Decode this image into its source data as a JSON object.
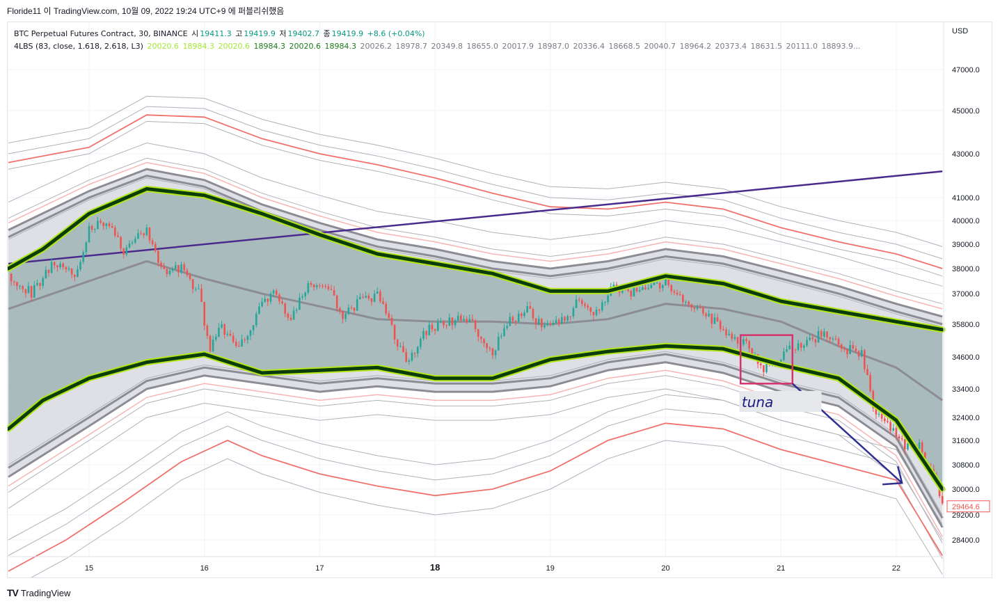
{
  "header": {
    "watermark": "Floride11 이 TradingView.com, 10월 09, 2022 19:24 UTC+9 에 퍼블리쉬했음"
  },
  "legend": {
    "symbol": "BTC Perpetual Futures Contract, 30, BINANCE",
    "o_label": "시",
    "o_value": "19411.3",
    "h_label": "고",
    "h_value": "19419.9",
    "l_label": "저",
    "l_value": "19402.7",
    "c_label": "종",
    "c_value": "19419.9",
    "change": "+8.6 (+0.04%)",
    "indicator": "4LBS (83, close, 1.618, 2.618, L3)",
    "ind_values": [
      "20020.6",
      "18984.3",
      "20020.6",
      "18984.3",
      "20020.6",
      "18984.3",
      "20026.2",
      "18978.7",
      "20349.8",
      "18655.0",
      "20017.9",
      "18987.0",
      "20336.4",
      "18668.5",
      "20040.7",
      "18964.2",
      "20373.4",
      "18631.5",
      "20111.0",
      "18893.9..."
    ]
  },
  "footer": {
    "brand": "TradingView",
    "logo": "tradingview-logo-icon"
  },
  "annotation": {
    "text": "tuna"
  },
  "chart_data": {
    "type": "candlestick-with-bands",
    "currency": "USD",
    "price_label": "29464.6",
    "price_label_color": "#ef5350",
    "y_ticks": [
      47000,
      45000,
      43000,
      41000,
      40000,
      39000,
      38000,
      37000,
      35800,
      34600,
      33400,
      32400,
      31600,
      30800,
      30000,
      29200,
      28400
    ],
    "y_tick_labels": [
      "47000.0",
      "45000.0",
      "43000.0",
      "41000.0",
      "40000.0",
      "39000.0",
      "38000.0",
      "37000.0",
      "35800.0",
      "34600.0",
      "33400.0",
      "32400.0",
      "31600.0",
      "30800.0",
      "30000.0",
      "29200.0",
      "28400.0"
    ],
    "x_ticks": [
      15,
      16,
      17,
      18,
      19,
      20,
      21,
      22
    ],
    "x_tick_labels": [
      "15",
      "16",
      "17",
      "18",
      "19",
      "20",
      "21",
      "22"
    ],
    "x_bold": [
      18
    ],
    "x_range": [
      14.3,
      22.4
    ],
    "closes": [
      [
        14.3,
        37800
      ],
      [
        14.5,
        37000
      ],
      [
        14.7,
        38300
      ],
      [
        14.9,
        37800
      ],
      [
        15.0,
        39600
      ],
      [
        15.15,
        40000
      ],
      [
        15.3,
        38700
      ],
      [
        15.5,
        39600
      ],
      [
        15.65,
        37800
      ],
      [
        15.8,
        38100
      ],
      [
        15.95,
        37000
      ],
      [
        16.05,
        34900
      ],
      [
        16.15,
        35700
      ],
      [
        16.3,
        34800
      ],
      [
        16.45,
        36200
      ],
      [
        16.6,
        37200
      ],
      [
        16.75,
        35900
      ],
      [
        16.9,
        37400
      ],
      [
        17.05,
        37300
      ],
      [
        17.2,
        36200
      ],
      [
        17.35,
        36700
      ],
      [
        17.5,
        36900
      ],
      [
        17.6,
        36000
      ],
      [
        17.75,
        34300
      ],
      [
        17.9,
        35500
      ],
      [
        18.05,
        35800
      ],
      [
        18.2,
        36000
      ],
      [
        18.35,
        35700
      ],
      [
        18.5,
        34800
      ],
      [
        18.65,
        35900
      ],
      [
        18.8,
        36300
      ],
      [
        18.95,
        35700
      ],
      [
        19.1,
        35900
      ],
      [
        19.25,
        36700
      ],
      [
        19.4,
        36300
      ],
      [
        19.55,
        37300
      ],
      [
        19.7,
        37000
      ],
      [
        19.85,
        37100
      ],
      [
        20.0,
        37500
      ],
      [
        20.1,
        36900
      ],
      [
        20.25,
        36500
      ],
      [
        20.4,
        36000
      ],
      [
        20.55,
        35300
      ],
      [
        20.7,
        35200
      ],
      [
        20.85,
        34200
      ],
      [
        21.0,
        34600
      ],
      [
        21.1,
        34900
      ],
      [
        21.25,
        35200
      ],
      [
        21.4,
        35500
      ],
      [
        21.55,
        34900
      ],
      [
        21.7,
        34700
      ],
      [
        21.8,
        32800
      ],
      [
        21.95,
        32000
      ],
      [
        22.1,
        31400
      ],
      [
        22.2,
        31500
      ],
      [
        22.3,
        30500
      ],
      [
        22.4,
        29465
      ]
    ],
    "bands": {
      "mid": [
        [
          14.3,
          36400
        ],
        [
          15.0,
          37500
        ],
        [
          15.5,
          38300
        ],
        [
          16.0,
          37600
        ],
        [
          16.5,
          37000
        ],
        [
          17.0,
          36500
        ],
        [
          17.5,
          36000
        ],
        [
          18.0,
          35900
        ],
        [
          18.5,
          35900
        ],
        [
          19.0,
          35800
        ],
        [
          19.5,
          36000
        ],
        [
          20.0,
          36600
        ],
        [
          20.5,
          36400
        ],
        [
          21.0,
          35900
        ],
        [
          21.5,
          35000
        ],
        [
          22.0,
          34200
        ],
        [
          22.4,
          33000
        ]
      ],
      "up1": [
        [
          14.3,
          38000
        ],
        [
          14.6,
          38800
        ],
        [
          15.0,
          40300
        ],
        [
          15.5,
          41400
        ],
        [
          16.0,
          41100
        ],
        [
          16.5,
          40300
        ],
        [
          17.0,
          39400
        ],
        [
          17.5,
          38600
        ],
        [
          18.0,
          38200
        ],
        [
          18.5,
          37800
        ],
        [
          19.0,
          37100
        ],
        [
          19.5,
          37100
        ],
        [
          20.0,
          37700
        ],
        [
          20.5,
          37400
        ],
        [
          21.0,
          36700
        ],
        [
          21.5,
          36300
        ],
        [
          22.0,
          35900
        ],
        [
          22.4,
          35600
        ]
      ],
      "lo1": [
        [
          14.3,
          32000
        ],
        [
          14.6,
          33000
        ],
        [
          15.0,
          33800
        ],
        [
          15.5,
          34400
        ],
        [
          16.0,
          34700
        ],
        [
          16.5,
          34000
        ],
        [
          17.0,
          34100
        ],
        [
          17.5,
          34200
        ],
        [
          18.0,
          33800
        ],
        [
          18.5,
          33800
        ],
        [
          19.0,
          34500
        ],
        [
          19.5,
          34800
        ],
        [
          20.0,
          35000
        ],
        [
          20.5,
          34900
        ],
        [
          21.0,
          34300
        ],
        [
          21.5,
          33800
        ],
        [
          22.0,
          32300
        ],
        [
          22.4,
          30000
        ]
      ],
      "up2": [
        [
          14.3,
          39600
        ],
        [
          15.0,
          41300
        ],
        [
          15.5,
          42300
        ],
        [
          16.0,
          41800
        ],
        [
          16.5,
          40700
        ],
        [
          17.0,
          39900
        ],
        [
          17.5,
          39200
        ],
        [
          18.0,
          38800
        ],
        [
          18.5,
          38300
        ],
        [
          19.0,
          38000
        ],
        [
          19.5,
          38300
        ],
        [
          20.0,
          38800
        ],
        [
          20.5,
          38500
        ],
        [
          21.0,
          37900
        ],
        [
          21.5,
          37300
        ],
        [
          22.0,
          36600
        ],
        [
          22.4,
          36100
        ]
      ],
      "lo2": [
        [
          14.3,
          30400
        ],
        [
          15.0,
          32100
        ],
        [
          15.5,
          33400
        ],
        [
          16.0,
          33900
        ],
        [
          16.5,
          33600
        ],
        [
          17.0,
          33300
        ],
        [
          17.5,
          33500
        ],
        [
          18.0,
          33300
        ],
        [
          18.5,
          33300
        ],
        [
          19.0,
          33500
        ],
        [
          19.5,
          34100
        ],
        [
          20.0,
          34400
        ],
        [
          20.5,
          34000
        ],
        [
          21.0,
          33300
        ],
        [
          21.5,
          32800
        ],
        [
          22.0,
          31400
        ],
        [
          22.4,
          28800
        ]
      ],
      "outer_up": [
        [
          14.3,
          42600
        ],
        [
          15.0,
          43300
        ],
        [
          15.5,
          44800
        ],
        [
          16.0,
          44700
        ],
        [
          16.5,
          43700
        ],
        [
          17.0,
          43000
        ],
        [
          17.5,
          42500
        ],
        [
          18.0,
          41900
        ],
        [
          18.5,
          41200
        ],
        [
          19.0,
          40600
        ],
        [
          19.5,
          40500
        ],
        [
          20.0,
          40800
        ],
        [
          20.5,
          40500
        ],
        [
          21.0,
          39700
        ],
        [
          21.5,
          39100
        ],
        [
          22.0,
          38600
        ],
        [
          22.4,
          38000
        ]
      ],
      "outer_lo": [
        [
          14.3,
          27400
        ],
        [
          14.8,
          28400
        ],
        [
          15.3,
          29600
        ],
        [
          15.8,
          30900
        ],
        [
          16.2,
          31600
        ],
        [
          16.5,
          31100
        ],
        [
          17.0,
          30500
        ],
        [
          17.5,
          30100
        ],
        [
          18.0,
          29800
        ],
        [
          18.5,
          30000
        ],
        [
          19.0,
          30600
        ],
        [
          19.5,
          31600
        ],
        [
          20.0,
          32200
        ],
        [
          20.5,
          32000
        ],
        [
          21.0,
          31300
        ],
        [
          21.5,
          30800
        ],
        [
          22.0,
          30300
        ],
        [
          22.4,
          27900
        ]
      ]
    },
    "trendline": [
      [
        14.3,
        38200
      ],
      [
        22.4,
        42200
      ]
    ],
    "arrow": [
      [
        21.1,
        33600
      ],
      [
        22.05,
        30200
      ]
    ],
    "box": [
      [
        20.65,
        35400
      ],
      [
        21.1,
        33600
      ]
    ],
    "colors": {
      "band_fill": "#a7b8ba",
      "band_line": "#0b3d0b",
      "band_glow": "#b5e61d",
      "grey": "#8c8c94",
      "red": "#f0716c",
      "trend": "#4a2a8c",
      "arrow": "#2f2f91",
      "box": "#d6336c",
      "candle_up": "#26a69a",
      "candle_down": "#ef5350"
    }
  }
}
